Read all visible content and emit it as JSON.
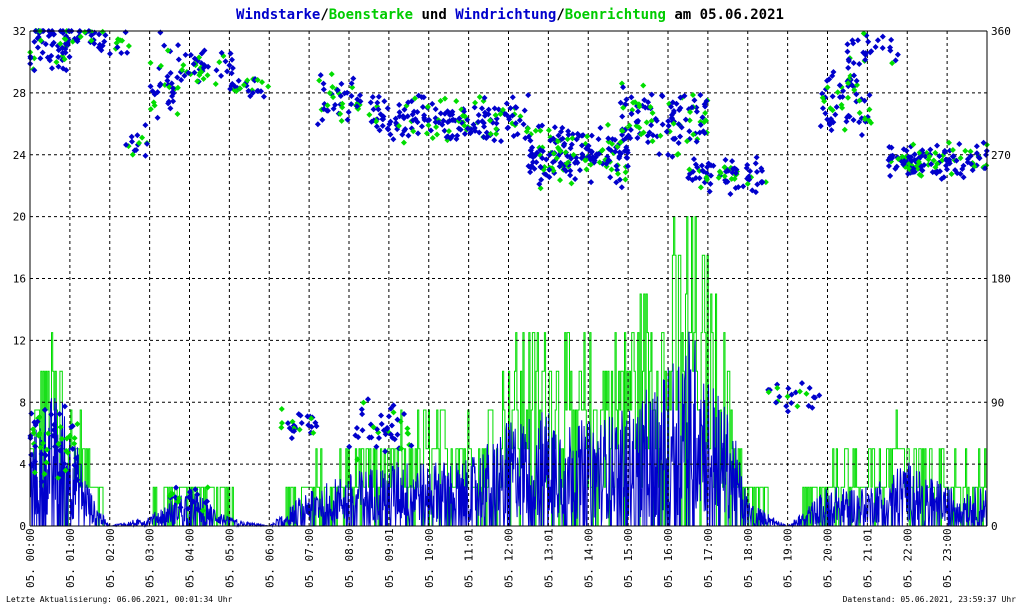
{
  "title": {
    "parts": [
      {
        "text": "Windstarke",
        "color": "#0000cc"
      },
      {
        "text": "/",
        "color": "#000000"
      },
      {
        "text": "Boenstarke",
        "color": "#00cc00"
      },
      {
        "text": " und ",
        "color": "#000000"
      },
      {
        "text": "Windrichtung",
        "color": "#0000cc"
      },
      {
        "text": "/",
        "color": "#000000"
      },
      {
        "text": "Boenrichtung",
        "color": "#00cc00"
      },
      {
        "text": " am 05.06.2021",
        "color": "#000000"
      }
    ]
  },
  "footer": {
    "left": "Letzte Aktualisierung: 06.06.2021, 00:01:34 Uhr",
    "right": "Datenstand: 05.06.2021, 23:59:37 Uhr"
  },
  "colors": {
    "wind": "#0000cc",
    "gust": "#00dd00",
    "grid": "#000000"
  },
  "chart_data": {
    "type": "line",
    "x_range_hours": [
      0,
      24
    ],
    "y_left": {
      "ticks": [
        "0",
        "4",
        "8",
        "12",
        "16",
        "20",
        "24",
        "28",
        "32"
      ],
      "ylim": [
        0,
        32
      ]
    },
    "y_right": {
      "ticks": [
        "0",
        "90",
        "180",
        "270",
        "360"
      ],
      "ylim": [
        0,
        360
      ]
    },
    "x_tick_labels": [
      "05. 00:00",
      "05. 01:00",
      "05. 02:00",
      "05. 03:00",
      "05. 04:00",
      "05. 05:00",
      "05. 06:00",
      "05. 07:00",
      "05. 08:00",
      "05. 09:01",
      "05. 10:00",
      "05. 11:01",
      "05. 12:00",
      "05. 13:01",
      "05. 14:00",
      "05. 15:00",
      "05. 16:00",
      "05. 17:00",
      "05. 18:00",
      "05. 19:00",
      "05. 20:00",
      "05. 21:01",
      "05. 22:00",
      "05. 23:00"
    ],
    "grid": true,
    "series_colors": [
      "#0000cc",
      "#00dd00",
      "#0000cc",
      "#00dd00"
    ],
    "wind_speed_profile": [
      [
        0.0,
        3
      ],
      [
        0.4,
        5
      ],
      [
        0.8,
        5
      ],
      [
        1.2,
        3
      ],
      [
        1.6,
        1
      ],
      [
        2.0,
        0
      ],
      [
        3.0,
        0.4
      ],
      [
        4.0,
        1.5
      ],
      [
        5.0,
        0.3
      ],
      [
        6.0,
        0
      ],
      [
        7.0,
        1.5
      ],
      [
        8.0,
        2
      ],
      [
        9.0,
        2.5
      ],
      [
        10.0,
        2.5
      ],
      [
        11.0,
        2.5
      ],
      [
        12.0,
        4
      ],
      [
        13.0,
        4.5
      ],
      [
        14.0,
        4
      ],
      [
        15.0,
        4.5
      ],
      [
        16.0,
        6
      ],
      [
        16.5,
        8
      ],
      [
        17.0,
        6
      ],
      [
        17.6,
        4
      ],
      [
        18.0,
        1
      ],
      [
        19.0,
        0
      ],
      [
        20.0,
        1.5
      ],
      [
        21.0,
        1.5
      ],
      [
        21.5,
        2
      ],
      [
        22.0,
        2.5
      ],
      [
        23.0,
        1.5
      ],
      [
        24.0,
        1.5
      ]
    ],
    "gust_speed_profile": [
      [
        0.0,
        5
      ],
      [
        0.4,
        8
      ],
      [
        0.8,
        8
      ],
      [
        1.2,
        5
      ],
      [
        1.6,
        3
      ],
      [
        2.0,
        0
      ],
      [
        3.0,
        1
      ],
      [
        4.0,
        2.5
      ],
      [
        5.0,
        1
      ],
      [
        6.0,
        0
      ],
      [
        7.0,
        2.5
      ],
      [
        8.0,
        3.5
      ],
      [
        9.0,
        4
      ],
      [
        10.0,
        5
      ],
      [
        11.0,
        5
      ],
      [
        12.0,
        8
      ],
      [
        13.0,
        9
      ],
      [
        14.0,
        8
      ],
      [
        15.0,
        9
      ],
      [
        16.0,
        12
      ],
      [
        16.5,
        15
      ],
      [
        17.0,
        11
      ],
      [
        17.6,
        7
      ],
      [
        18.0,
        2
      ],
      [
        19.0,
        0
      ],
      [
        20.0,
        3
      ],
      [
        21.0,
        3
      ],
      [
        21.5,
        4
      ],
      [
        22.0,
        5
      ],
      [
        23.0,
        3
      ],
      [
        24.0,
        3
      ]
    ],
    "wind_direction_clusters": [
      {
        "from": 0.0,
        "to": 1.0,
        "center": 350,
        "spread": 25,
        "n": 70
      },
      {
        "from": 0.0,
        "to": 1.2,
        "center": 60,
        "spread": 30,
        "n": 60
      },
      {
        "from": 1.0,
        "to": 2.5,
        "center": 352,
        "spread": 12,
        "n": 40
      },
      {
        "from": 2.4,
        "to": 3.0,
        "center": 280,
        "spread": 15,
        "n": 15
      },
      {
        "from": 3.0,
        "to": 3.8,
        "center": 320,
        "spread": 40,
        "n": 40
      },
      {
        "from": 3.8,
        "to": 5.2,
        "center": 335,
        "spread": 15,
        "n": 45
      },
      {
        "from": 3.5,
        "to": 4.5,
        "center": 20,
        "spread": 10,
        "n": 20
      },
      {
        "from": 5.0,
        "to": 6.0,
        "center": 320,
        "spread": 8,
        "n": 30
      },
      {
        "from": 6.2,
        "to": 7.2,
        "center": 75,
        "spread": 12,
        "n": 30
      },
      {
        "from": 7.2,
        "to": 8.3,
        "center": 310,
        "spread": 20,
        "n": 50
      },
      {
        "from": 8.0,
        "to": 9.6,
        "center": 70,
        "spread": 25,
        "n": 45
      },
      {
        "from": 8.5,
        "to": 12.5,
        "center": 295,
        "spread": 20,
        "n": 200
      },
      {
        "from": 12.5,
        "to": 15.0,
        "center": 270,
        "spread": 25,
        "n": 200
      },
      {
        "from": 14.8,
        "to": 17.0,
        "center": 295,
        "spread": 30,
        "n": 130
      },
      {
        "from": 16.5,
        "to": 18.5,
        "center": 255,
        "spread": 15,
        "n": 80
      },
      {
        "from": 18.5,
        "to": 19.8,
        "center": 95,
        "spread": 15,
        "n": 25
      },
      {
        "from": 19.8,
        "to": 21.2,
        "center": 310,
        "spread": 30,
        "n": 70
      },
      {
        "from": 20.5,
        "to": 21.8,
        "center": 345,
        "spread": 15,
        "n": 30
      },
      {
        "from": 21.5,
        "to": 24.0,
        "center": 265,
        "spread": 15,
        "n": 140
      }
    ]
  }
}
